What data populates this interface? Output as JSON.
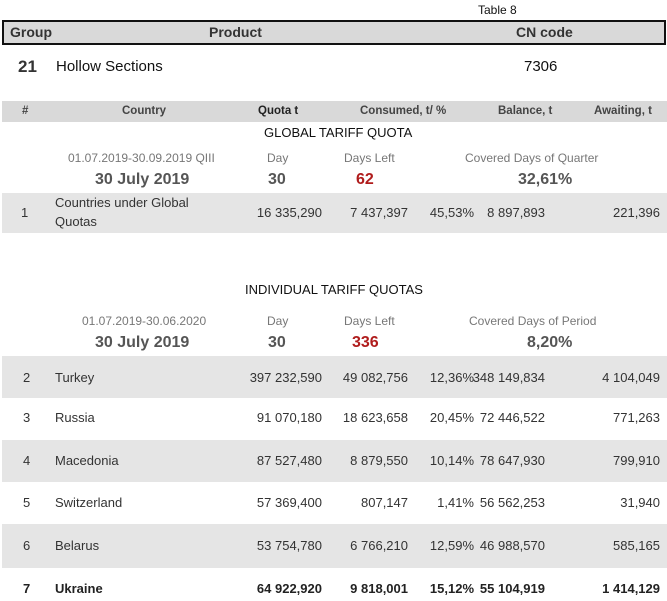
{
  "table_label": "Table 8",
  "header": {
    "group": "Group",
    "product": "Product",
    "cn_code": "CN code"
  },
  "group_row": {
    "id": "21",
    "product": "Hollow Sections",
    "cn_code": "7306"
  },
  "columns": {
    "num": "#",
    "country": "Country",
    "quota": "Quota t",
    "consumed": "Consumed, t/ %",
    "balance": "Balance, t",
    "awaiting": "Awaiting, t"
  },
  "global": {
    "title": "GLOBAL TARIFF QUOTA",
    "period": "01.07.2019-30.09.2019  QIII",
    "day_label": "Day",
    "days_left_label": "Days Left",
    "covered_label": "Covered Days of Quarter",
    "date": "30 July 2019",
    "day": "30",
    "days_left": "62",
    "covered": "32,61%",
    "rows": [
      {
        "num": "1",
        "country_line1": "Countries under Global",
        "country_line2": "Quotas",
        "quota": "16 335,290",
        "consumed": "7 437,397",
        "pct": "45,53%",
        "balance": "8 897,893",
        "awaiting": "221,396"
      }
    ]
  },
  "individual": {
    "title": "INDIVIDUAL TARIFF QUOTAS",
    "period": "01.07.2019-30.06.2020",
    "day_label": "Day",
    "days_left_label": "Days Left",
    "covered_label": "Covered Days of Period",
    "date": "30 July 2019",
    "day": "30",
    "days_left": "336",
    "covered": "8,20%",
    "rows": [
      {
        "num": "2",
        "country": "Turkey",
        "quota": "397 232,590",
        "consumed": "49 082,756",
        "pct": "12,36%",
        "balance": "348 149,834",
        "awaiting": "4 104,049"
      },
      {
        "num": "3",
        "country": "Russia",
        "quota": "91 070,180",
        "consumed": "18 623,658",
        "pct": "20,45%",
        "balance": "72 446,522",
        "awaiting": "771,263"
      },
      {
        "num": "4",
        "country": "Macedonia",
        "quota": "87 527,480",
        "consumed": "8 879,550",
        "pct": "10,14%",
        "balance": "78 647,930",
        "awaiting": "799,910"
      },
      {
        "num": "5",
        "country": "Switzerland",
        "quota": "57 369,400",
        "consumed": "807,147",
        "pct": "1,41%",
        "balance": "56 562,253",
        "awaiting": "31,940"
      },
      {
        "num": "6",
        "country": "Belarus",
        "quota": "53 754,780",
        "consumed": "6 766,210",
        "pct": "12,59%",
        "balance": "46 988,570",
        "awaiting": "585,165"
      },
      {
        "num": "7",
        "country": "Ukraine",
        "quota": "64 922,920",
        "consumed": "9 818,001",
        "pct": "15,12%",
        "balance": "55 104,919",
        "awaiting": "1 414,129"
      }
    ]
  }
}
